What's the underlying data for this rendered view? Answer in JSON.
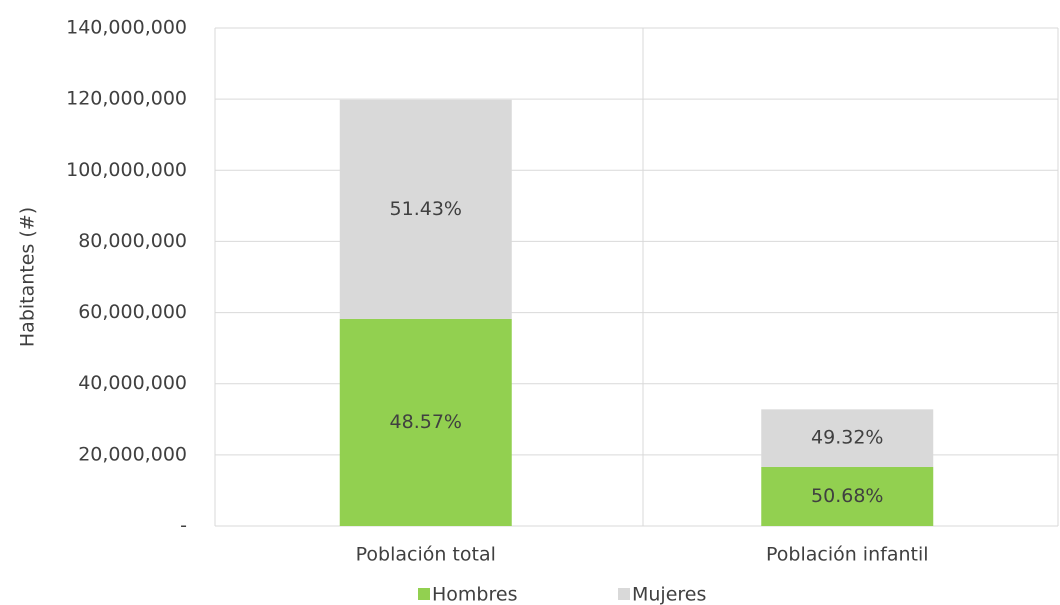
{
  "chart_data": {
    "type": "stacked_bar",
    "y_axis_label": "Habitantes (#)",
    "categories": [
      "Población total",
      "Población infantil"
    ],
    "series": [
      {
        "name": "Hombres",
        "color": "#92d050",
        "values": [
          58200000,
          16600000
        ],
        "share_labels": [
          "48.57%",
          "50.68%"
        ]
      },
      {
        "name": "Mujeres",
        "color": "#d9d9d9",
        "values": [
          61600000,
          16200000
        ],
        "share_labels": [
          "51.43%",
          "49.32%"
        ]
      }
    ],
    "ylim": [
      0,
      140000000
    ],
    "yticks": [
      {
        "value": 0,
        "label": "-"
      },
      {
        "value": 20000000,
        "label": "20,000,000"
      },
      {
        "value": 40000000,
        "label": "40,000,000"
      },
      {
        "value": 60000000,
        "label": "60,000,000"
      },
      {
        "value": 80000000,
        "label": "80,000,000"
      },
      {
        "value": 100000000,
        "label": "100,000,000"
      },
      {
        "value": 120000000,
        "label": "120,000,000"
      },
      {
        "value": 140000000,
        "label": "140,000,000"
      }
    ],
    "grid": true,
    "legend": "bottom"
  }
}
